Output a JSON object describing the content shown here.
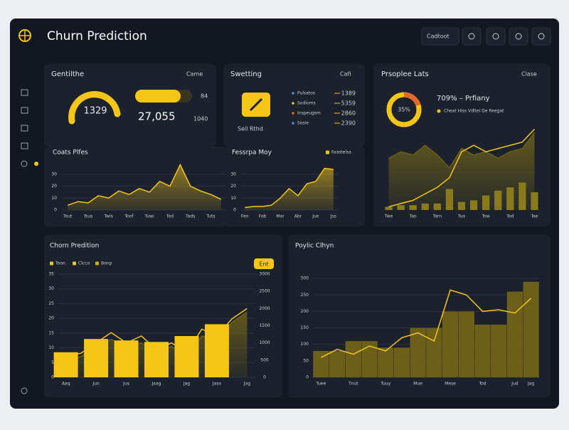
{
  "header": {
    "title": "Churn Prediction",
    "button": "Cadtoot"
  },
  "panels": {
    "overview": {
      "title": "Gentilthe",
      "dropdown": "Came",
      "gauge": "1329",
      "total": "27,055",
      "stat_top": "84",
      "stat_bottom": "1040"
    },
    "settings": {
      "title": "Swetting",
      "dropdown": "Cafi",
      "rows": [
        [
          "Pulsatos",
          "1389"
        ],
        [
          "Sodioms",
          "5359"
        ],
        [
          "Inspeugsm",
          "2860"
        ],
        [
          "Sosie",
          "2390"
        ]
      ],
      "footer": "Sell Rthd"
    },
    "people": {
      "title": "Prsoplee Lats",
      "dropdown": "Clase",
      "donut": "35%",
      "headline": "709% – Prfiany",
      "legend": "Cheat Hiss Vdltei Ge Reegat"
    },
    "chip": "Ent"
  },
  "chart_data": [
    {
      "type": "area",
      "title": "Coats Plfes",
      "categories": [
        "Tout",
        null,
        "Tsus",
        null,
        "Twis",
        null,
        "Toof",
        null,
        "Tuwi",
        null,
        "Tod",
        null,
        "Tads",
        null,
        "Tuts",
        null
      ],
      "series": [
        {
          "kind": "area",
          "color": "#f5c518",
          "values": [
            4,
            7,
            6,
            12,
            10,
            16,
            13,
            18,
            15,
            24,
            20,
            38,
            20,
            16,
            13,
            9
          ]
        }
      ],
      "ylim": [
        0,
        40
      ],
      "yticks": [
        0,
        10,
        20,
        30
      ]
    },
    {
      "type": "area",
      "title": "Fessrpa Moy",
      "legend": "top-right",
      "categories": [
        "Fen",
        null,
        "Fob",
        null,
        "Mar",
        null,
        "Abr",
        null,
        "Jue",
        null,
        "Jss"
      ],
      "series": [
        {
          "name": "Faastelsa",
          "kind": "area",
          "color": "#f5c518",
          "values": [
            2,
            3,
            3,
            4,
            10,
            18,
            12,
            22,
            24,
            35,
            34
          ]
        }
      ],
      "ylim": [
        0,
        40
      ],
      "yticks": [
        0,
        10,
        20,
        30
      ]
    },
    {
      "type": "combo",
      "categories": [
        "Twe",
        null,
        "Tao",
        null,
        "Tarn",
        null,
        "Tuo",
        null,
        "Tow",
        null,
        "Tod",
        null,
        "Tae"
      ],
      "series": [
        {
          "kind": "area",
          "color": "#6b5f1a",
          "values": [
            32,
            36,
            34,
            40,
            34,
            26,
            38,
            34,
            36,
            32,
            36,
            38,
            48
          ]
        },
        {
          "kind": "bar",
          "color": "#8a7a1e",
          "values": [
            2,
            3,
            3,
            4,
            4,
            13,
            5,
            6,
            9,
            12,
            14,
            17,
            11
          ]
        },
        {
          "kind": "line",
          "color": "#f5c518",
          "values": [
            2,
            4,
            6,
            10,
            14,
            20,
            36,
            40,
            36,
            38,
            40,
            42,
            50
          ]
        }
      ],
      "ylim": [
        0,
        55
      ]
    },
    {
      "type": "combo",
      "title": "Chorn Predition",
      "legend": "top-left",
      "categories": [
        "Aaq",
        null,
        "Jun",
        null,
        "Jus",
        null,
        "Jaag",
        null,
        "Jag",
        null,
        "Jaso",
        null,
        "Jag"
      ],
      "series": [
        {
          "name": "Toon",
          "kind": "bar",
          "color": "#f5c518",
          "values": [
            8.5,
            null,
            13,
            null,
            12.5,
            null,
            12,
            null,
            14,
            null,
            18,
            null,
            null
          ]
        },
        {
          "name": "Clcco",
          "kind": "line",
          "axis": "y2",
          "color": "#f5c518",
          "values": [
            600,
            700,
            1000,
            1300,
            1000,
            1200,
            800,
            1000,
            700,
            1400,
            1200,
            1700,
            2000
          ]
        },
        {
          "name": "Bonp",
          "kind": "area",
          "axis": "y2",
          "color": "#6b5f1a",
          "values": [
            500,
            600,
            900,
            1100,
            900,
            1000,
            700,
            900,
            600,
            1200,
            1100,
            1600,
            1900
          ]
        }
      ],
      "ylim": [
        0,
        35
      ],
      "yticks": [
        0,
        5,
        10,
        15,
        20,
        25,
        30,
        35
      ],
      "y2lim": [
        0,
        3000
      ],
      "y2ticks": [
        0,
        500,
        1000,
        1500,
        2000,
        2500,
        3000
      ]
    },
    {
      "type": "combo",
      "title": "Poylic Clhyn",
      "categories": [
        "Tuee",
        null,
        "Tnut",
        null,
        "Tuuy",
        null,
        "Mue",
        null,
        "Mese",
        null,
        "Tod",
        null,
        "Jud",
        "Jag"
      ],
      "series": [
        {
          "kind": "bar",
          "color": "#6b5f1a",
          "values": [
            80,
            80,
            110,
            110,
            90,
            90,
            150,
            150,
            200,
            200,
            160,
            160,
            260,
            290
          ]
        },
        {
          "kind": "line",
          "color": "#f5c518",
          "values": [
            60,
            85,
            70,
            95,
            80,
            120,
            135,
            110,
            265,
            250,
            200,
            205,
            195,
            240
          ]
        }
      ],
      "ylim": [
        0,
        350
      ],
      "yticks": [
        0,
        50,
        100,
        150,
        200,
        250,
        300
      ]
    }
  ]
}
